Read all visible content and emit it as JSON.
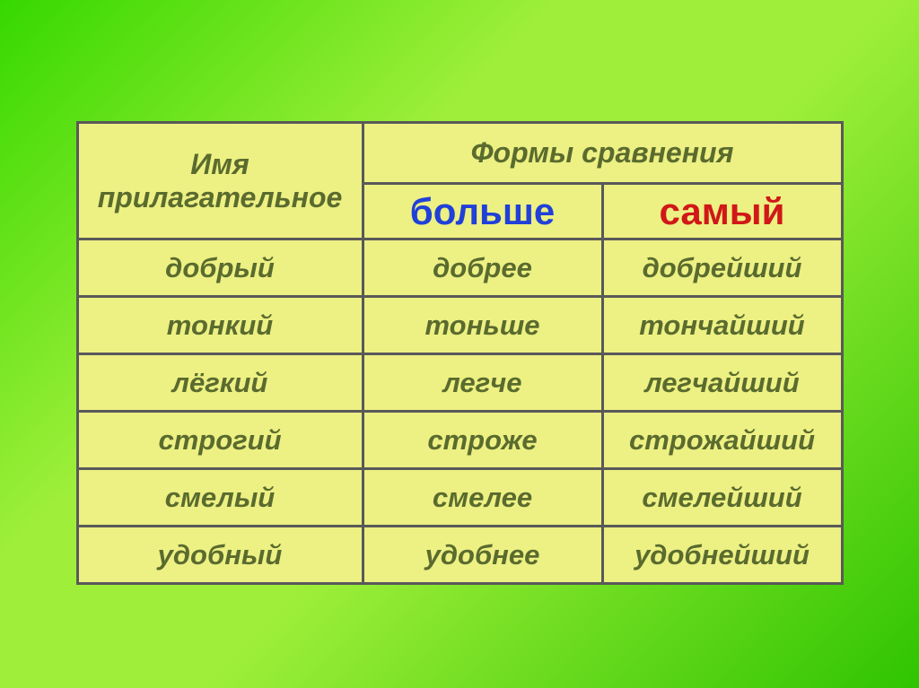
{
  "background": {
    "gradient_start": "#36d800",
    "gradient_mid": "#9fef3a",
    "gradient_end": "#2fc400"
  },
  "table": {
    "cell_bg": "#edf083",
    "border_color": "#595959",
    "border_width": 3,
    "header": {
      "left": "Имя прилагательное",
      "right": "Формы сравнения",
      "font_size": 32,
      "color": "#5a6b2e",
      "row1_height": 68,
      "sub": {
        "col1": "больше",
        "col1_color": "#2040d8",
        "col2": "самый",
        "col2_color": "#d01818",
        "font_size": 42,
        "height": 62
      }
    },
    "rows": [
      {
        "adj": "добрый",
        "comp": "добрее",
        "sup": "добрейший"
      },
      {
        "adj": "тонкий",
        "comp": "тоньше",
        "sup": "тончайший"
      },
      {
        "adj": "лёгкий",
        "comp": "легче",
        "sup": "легчайший"
      },
      {
        "adj": "строгий",
        "comp": "строже",
        "sup": "строжайший"
      },
      {
        "adj": "смелый",
        "comp": "смелее",
        "sup": "смелейший"
      },
      {
        "adj": "удобный",
        "comp": "удобнее",
        "sup": "удобнейший"
      }
    ],
    "row_style": {
      "font_size": 31,
      "color": "#5a6b2e",
      "height": 64
    }
  }
}
